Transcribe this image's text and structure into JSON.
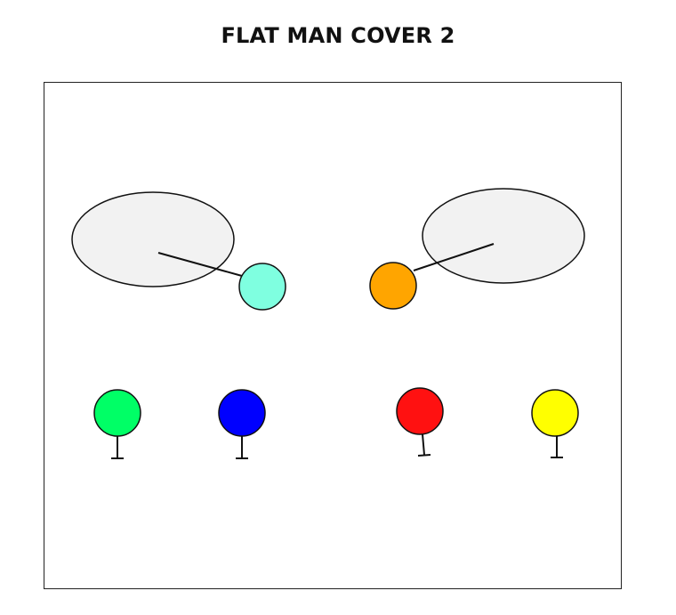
{
  "page": {
    "title": "FLAT MAN COVER 2"
  },
  "diagram": {
    "field_background": "#ffffff",
    "zone_fill": "#f2f2f2",
    "stroke_color": "#111111",
    "zones": [
      {
        "name": "left-flat-zone"
      },
      {
        "name": "right-flat-zone"
      }
    ],
    "defenders": [
      {
        "name": "left-flat-defender",
        "color": "#7fffe0"
      },
      {
        "name": "right-flat-defender",
        "color": "#ffa500"
      }
    ],
    "offensive_players": [
      {
        "name": "green-player",
        "color": "#00ff66"
      },
      {
        "name": "blue-player",
        "color": "#0000ff"
      },
      {
        "name": "red-player",
        "color": "#ff1111"
      },
      {
        "name": "yellow-player",
        "color": "#ffff00"
      }
    ]
  }
}
